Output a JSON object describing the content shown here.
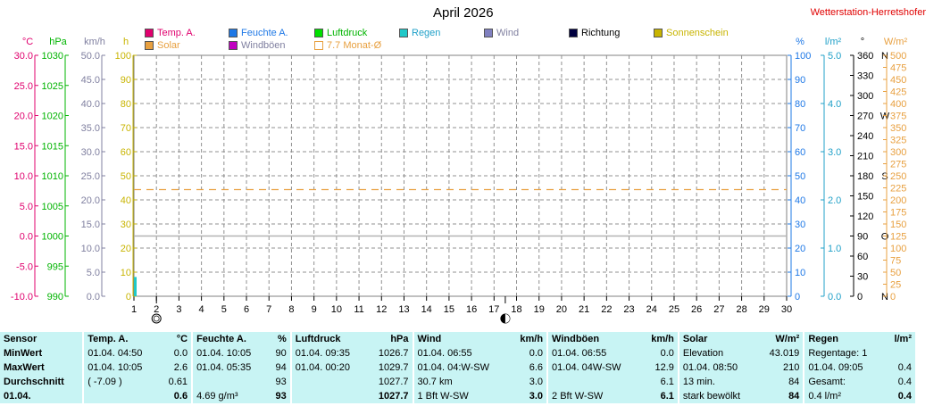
{
  "header": {
    "title": "April 2026",
    "station": "Wetterstation-Herretshofer"
  },
  "legend": [
    {
      "label": "Temp. A.",
      "color": "#e0006e",
      "text_color": "#e0006e"
    },
    {
      "label": "Feuchte A.",
      "color": "#1e78e6",
      "text_color": "#1e78e6"
    },
    {
      "label": "Luftdruck",
      "color": "#00e000",
      "text_color": "#00b400"
    },
    {
      "label": "Regen",
      "color": "#20c8c8",
      "text_color": "#20a0c8"
    },
    {
      "label": "Wind",
      "color": "#8080c0",
      "text_color": "#8080a0"
    },
    {
      "label": "Richtung",
      "color": "#000040",
      "text_color": "#000000"
    },
    {
      "label": "Sonnenschein",
      "color": "#c8b400",
      "text_color": "#c8b400"
    },
    {
      "label": "Solar",
      "color": "#e8a040",
      "text_color": "#e8a040"
    },
    {
      "label": "Windböen",
      "color": "#c000c0",
      "text_color": "#8080a0"
    },
    {
      "label": "7.7 Monat-Ø",
      "color": "#e8a040",
      "text_color": "#e8a040",
      "outline": true
    }
  ],
  "chart_data": {
    "type": "line",
    "title": "April 2026",
    "x": {
      "label": "",
      "ticks": [
        "1",
        "2",
        "3",
        "4",
        "5",
        "6",
        "7",
        "8",
        "9",
        "10",
        "11",
        "12",
        "13",
        "14",
        "15",
        "16",
        "17",
        "18",
        "19",
        "20",
        "21",
        "22",
        "23",
        "24",
        "25",
        "26",
        "27",
        "28",
        "29",
        "30"
      ],
      "range": [
        1,
        30
      ]
    },
    "axes": [
      {
        "unit": "°C",
        "side": "left",
        "color": "#e0006e",
        "range": [
          -10,
          30
        ],
        "ticks": [
          "30.0",
          "25.0",
          "20.0",
          "15.0",
          "10.0",
          "5.0",
          "0.0",
          "-5.0",
          "-10.0"
        ]
      },
      {
        "unit": "hPa",
        "side": "left",
        "color": "#00b400",
        "range": [
          990,
          1030
        ],
        "ticks": [
          "1030",
          "1025",
          "1020",
          "1015",
          "1010",
          "1005",
          "1000",
          "995",
          "990"
        ]
      },
      {
        "unit": "km/h",
        "side": "left",
        "color": "#8080a0",
        "range": [
          0,
          50
        ],
        "ticks": [
          "50.0",
          "45.0",
          "40.0",
          "35.0",
          "30.0",
          "25.0",
          "20.0",
          "15.0",
          "10.0",
          "5.0",
          "0.0"
        ]
      },
      {
        "unit": "h",
        "side": "left",
        "color": "#c8b400",
        "range": [
          0,
          100
        ],
        "ticks": [
          "100",
          "90",
          "80",
          "70",
          "60",
          "50",
          "40",
          "30",
          "20",
          "10",
          "0"
        ]
      },
      {
        "unit": "%",
        "side": "right",
        "color": "#1e78e6",
        "range": [
          0,
          100
        ],
        "ticks": [
          "100",
          "90",
          "80",
          "70",
          "60",
          "50",
          "40",
          "30",
          "20",
          "10",
          "0"
        ]
      },
      {
        "unit": "l/m²",
        "side": "right",
        "color": "#20a0c8",
        "range": [
          0,
          5
        ],
        "ticks": [
          "5.0",
          "4.0",
          "3.0",
          "2.0",
          "1.0",
          "0.0"
        ]
      },
      {
        "unit": "°",
        "side": "right",
        "color": "#000000",
        "range": [
          0,
          360
        ],
        "ticks": [
          "360",
          "330",
          "300",
          "270",
          "240",
          "210",
          "180",
          "150",
          "120",
          "90",
          "60",
          "30",
          "0"
        ],
        "directions": [
          {
            "value": 360,
            "label": "N"
          },
          {
            "value": 270,
            "label": "W"
          },
          {
            "value": 180,
            "label": "S"
          },
          {
            "value": 90,
            "label": "O"
          },
          {
            "value": 0,
            "label": "N"
          }
        ]
      },
      {
        "unit": "W/m²",
        "side": "right",
        "color": "#e8a040",
        "range": [
          0,
          500
        ],
        "ticks": [
          "500",
          "475",
          "450",
          "425",
          "400",
          "375",
          "350",
          "325",
          "300",
          "275",
          "250",
          "225",
          "200",
          "175",
          "150",
          "125",
          "100",
          "75",
          "50",
          "25",
          "0"
        ]
      }
    ],
    "series": [
      {
        "name": "7.7 Monat-Ø",
        "axis": "°C",
        "style": "dashed",
        "color": "#e8a040",
        "points": [
          [
            1,
            7.7
          ],
          [
            30,
            7.7
          ]
        ]
      },
      {
        "name": "Sonnenschein",
        "axis": "h",
        "style": "solid",
        "color": "#b4b4b4",
        "points": [
          [
            1,
            25
          ],
          [
            30,
            25
          ]
        ]
      },
      {
        "name": "Regen",
        "axis": "l/m²",
        "style": "bar",
        "color": "#20c8c8",
        "points": [
          [
            1,
            0.4
          ]
        ]
      }
    ],
    "moon_phases": [
      {
        "day": 2,
        "phase": "full"
      },
      {
        "day": 17.5,
        "phase": "new"
      }
    ],
    "grid": true
  },
  "stats": {
    "columns": [
      {
        "title": "Sensor"
      },
      {
        "title": "Temp. A.",
        "unit": "°C"
      },
      {
        "title": "Feuchte A.",
        "unit": "%"
      },
      {
        "title": "Luftdruck",
        "unit": "hPa"
      },
      {
        "title": "Wind",
        "unit": "km/h"
      },
      {
        "title": "Windböen",
        "unit": "km/h"
      },
      {
        "title": "Solar",
        "unit": "W/m²"
      },
      {
        "title": "Regen",
        "unit": "l/m²"
      }
    ],
    "rows": [
      {
        "label": "MinWert",
        "cells": [
          [
            "01.04.  04:50",
            "0.0"
          ],
          [
            "01.04.  10:05",
            "90"
          ],
          [
            "01.04.  09:35",
            "1026.7"
          ],
          [
            "01.04.  06:55",
            "0.0"
          ],
          [
            "01.04.  06:55",
            "0.0"
          ],
          [
            "Elevation",
            "43.019"
          ],
          [
            "Regentage: 1",
            ""
          ]
        ]
      },
      {
        "label": "MaxWert",
        "cells": [
          [
            "01.04.  10:05",
            "2.6"
          ],
          [
            "01.04.  05:35",
            "94"
          ],
          [
            "01.04.  00:20",
            "1029.7"
          ],
          [
            "01.04.  04:W-SW",
            "6.6"
          ],
          [
            "01.04.  04W-SW",
            "12.9"
          ],
          [
            "01.04.  08:50",
            "210"
          ],
          [
            "01.04.  09:05",
            "0.4"
          ]
        ]
      },
      {
        "label": "Durchschnitt",
        "cells": [
          [
            "( -7.09 )",
            "0.61"
          ],
          [
            "",
            "93"
          ],
          [
            "",
            "1027.7"
          ],
          [
            "30.7 km",
            "3.0"
          ],
          [
            "",
            "6.1"
          ],
          [
            "13 min.",
            "84"
          ],
          [
            "Gesamt:",
            "0.4"
          ]
        ]
      },
      {
        "label": "01.04.",
        "cells": [
          [
            "",
            "0.6"
          ],
          [
            "4.69 g/m³",
            "93"
          ],
          [
            "",
            "1027.7"
          ],
          [
            "1 Bft W-SW",
            "3.0"
          ],
          [
            "2 Bft W-SW",
            "6.1"
          ],
          [
            "stark bewölkt",
            "84"
          ],
          [
            "0.4 l/m²",
            "0.4"
          ]
        ]
      }
    ]
  }
}
